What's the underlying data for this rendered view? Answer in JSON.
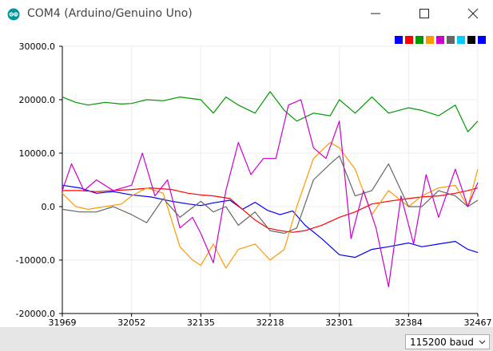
{
  "window": {
    "title": "COM4 (Arduino/Genuino Uno)",
    "controls": [
      "minimize",
      "maximize",
      "close"
    ]
  },
  "legend": {
    "colors": [
      "#0000ff",
      "#ff0000",
      "#009900",
      "#ff9900",
      "#cc00cc",
      "#666666",
      "#00ccff",
      "#000000",
      "#0000ff"
    ]
  },
  "footer": {
    "baud_value": "115200 baud"
  },
  "chart_data": {
    "type": "line",
    "title": "",
    "xlabel": "",
    "ylabel": "",
    "xlim": [
      31969,
      32467
    ],
    "ylim": [
      -20000,
      30000
    ],
    "x_ticks": [
      "31969",
      "32052",
      "32135",
      "32218",
      "32301",
      "32384",
      "32467"
    ],
    "y_ticks": [
      "30000.0",
      "20000.0",
      "10000.0",
      "0.0",
      "-10000.0",
      "-20000.0"
    ],
    "grid": true,
    "series": [
      {
        "name": "blue",
        "color": "#0000ff",
        "x": [
          31969,
          31990,
          32010,
          32030,
          32052,
          32075,
          32100,
          32120,
          32135,
          32150,
          32170,
          32185,
          32200,
          32215,
          32230,
          32245,
          32260,
          32280,
          32301,
          32320,
          32340,
          32360,
          32384,
          32400,
          32420,
          32440,
          32455,
          32467
        ],
        "values": [
          4000,
          3500,
          2500,
          2800,
          2200,
          1800,
          1000,
          500,
          200,
          700,
          1200,
          -500,
          800,
          -700,
          -1500,
          -800,
          -3500,
          -6000,
          -9000,
          -9500,
          -8000,
          -7500,
          -6800,
          -7500,
          -7000,
          -6500,
          -8000,
          -8600
        ]
      },
      {
        "name": "red",
        "color": "#ff0000",
        "x": [
          31969,
          31990,
          32010,
          32030,
          32052,
          32075,
          32100,
          32120,
          32135,
          32150,
          32170,
          32185,
          32200,
          32215,
          32230,
          32245,
          32260,
          32280,
          32301,
          32320,
          32340,
          32360,
          32384,
          32400,
          32420,
          32440,
          32455,
          32467
        ],
        "values": [
          3000,
          3000,
          2800,
          3000,
          3200,
          3500,
          3200,
          2500,
          2200,
          2000,
          1500,
          -500,
          -2500,
          -4000,
          -4500,
          -4800,
          -4500,
          -3500,
          -2000,
          -1000,
          500,
          1000,
          1500,
          1800,
          2000,
          2500,
          3000,
          3500
        ]
      },
      {
        "name": "green",
        "color": "#009900",
        "x": [
          31969,
          31985,
          32000,
          32020,
          32040,
          32052,
          32070,
          32090,
          32110,
          32135,
          32150,
          32165,
          32180,
          32200,
          32218,
          32235,
          32250,
          32270,
          32290,
          32301,
          32320,
          32340,
          32360,
          32384,
          32400,
          32420,
          32440,
          32455,
          32467
        ],
        "values": [
          20500,
          19500,
          19000,
          19500,
          19200,
          19300,
          20000,
          19800,
          20500,
          20000,
          17500,
          20500,
          19000,
          17500,
          21500,
          18000,
          16000,
          17500,
          17000,
          20000,
          17500,
          20500,
          17500,
          18500,
          18000,
          17000,
          19000,
          14000,
          16000
        ]
      },
      {
        "name": "orange",
        "color": "#ff9900",
        "x": [
          31969,
          31985,
          32000,
          32020,
          32040,
          32052,
          32070,
          32090,
          32110,
          32125,
          32135,
          32150,
          32165,
          32180,
          32200,
          32218,
          32235,
          32250,
          32270,
          32290,
          32301,
          32320,
          32340,
          32360,
          32384,
          32400,
          32420,
          32440,
          32455,
          32467
        ],
        "values": [
          2500,
          0,
          -500,
          0,
          500,
          2000,
          3500,
          2500,
          -7500,
          -10000,
          -11000,
          -7000,
          -11500,
          -8000,
          -7000,
          -10000,
          -8000,
          0,
          9000,
          12000,
          11000,
          7000,
          -1500,
          3000,
          0,
          2000,
          3500,
          4000,
          0,
          7000
        ]
      },
      {
        "name": "magenta",
        "color": "#cc00cc",
        "x": [
          31969,
          31980,
          31995,
          32010,
          32030,
          32052,
          32065,
          32080,
          32095,
          32110,
          32125,
          32135,
          32150,
          32165,
          32180,
          32195,
          32210,
          32225,
          32240,
          32255,
          32270,
          32285,
          32301,
          32315,
          32330,
          32345,
          32360,
          32375,
          32390,
          32405,
          32420,
          32440,
          32455,
          32467
        ],
        "values": [
          3000,
          8000,
          3000,
          5000,
          3000,
          4000,
          10000,
          2000,
          5000,
          -4000,
          -2000,
          -5000,
          -10500,
          3000,
          12000,
          6000,
          9000,
          9000,
          19000,
          20000,
          11000,
          9000,
          16000,
          -6000,
          3000,
          -4000,
          -15000,
          2000,
          -7000,
          6000,
          -2000,
          7000,
          0,
          4500
        ]
      },
      {
        "name": "gray",
        "color": "#666666",
        "x": [
          31969,
          31990,
          32010,
          32030,
          32052,
          32070,
          32090,
          32110,
          32135,
          32150,
          32165,
          32180,
          32200,
          32218,
          32235,
          32250,
          32270,
          32290,
          32301,
          32320,
          32340,
          32360,
          32384,
          32400,
          32420,
          32440,
          32455,
          32467
        ],
        "values": [
          -500,
          -1000,
          -1000,
          0,
          -1500,
          -3000,
          1500,
          -2000,
          1000,
          -1000,
          0,
          -3500,
          -1000,
          -4500,
          -5000,
          -4000,
          5000,
          8000,
          9500,
          2000,
          3000,
          8000,
          0,
          0,
          3000,
          2000,
          0,
          1200
        ]
      }
    ]
  }
}
